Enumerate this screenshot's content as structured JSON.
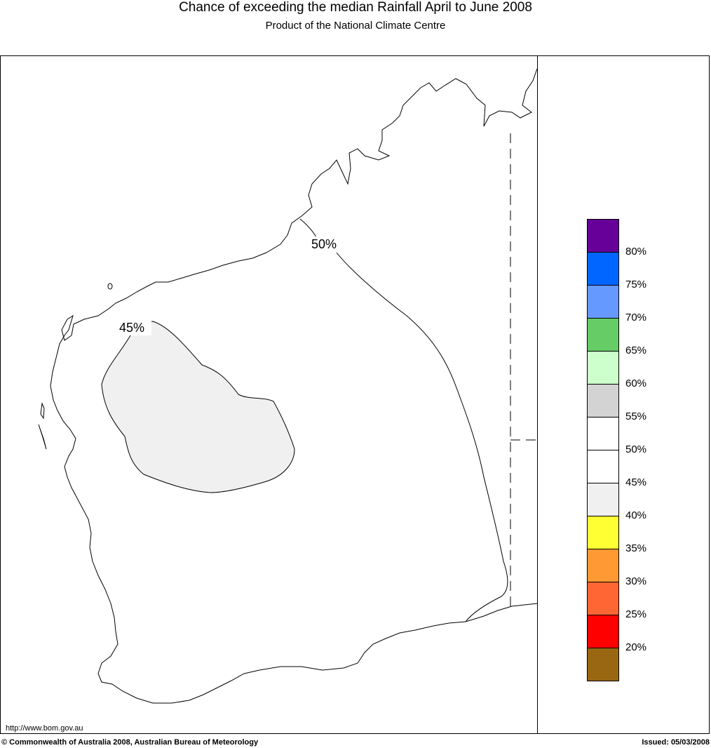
{
  "header": {
    "title": "Chance of exceeding the median Rainfall April to June 2008",
    "subtitle": "Product of the National Climate Centre"
  },
  "map": {
    "contours": [
      {
        "label": "50%"
      },
      {
        "label": "45%"
      }
    ],
    "colors": {
      "region_45": "#f0f0f0",
      "coastline": "#000000",
      "background": "#ffffff"
    }
  },
  "legend": {
    "swatches": [
      {
        "color": "#660099"
      },
      {
        "color": "#0066ff"
      },
      {
        "color": "#6699ff"
      },
      {
        "color": "#66cc66"
      },
      {
        "color": "#ccffcc"
      },
      {
        "color": "#d3d3d3"
      },
      {
        "color": "#ffffff"
      },
      {
        "color": "#ffffff"
      },
      {
        "color": "#f0f0f0"
      },
      {
        "color": "#ffff33"
      },
      {
        "color": "#ff9933"
      },
      {
        "color": "#ff6633"
      },
      {
        "color": "#ff0000"
      },
      {
        "color": "#996611"
      }
    ],
    "labels": [
      "80%",
      "75%",
      "70%",
      "65%",
      "60%",
      "55%",
      "50%",
      "45%",
      "40%",
      "35%",
      "30%",
      "25%",
      "20%"
    ]
  },
  "footer": {
    "url": "http://www.bom.gov.au",
    "copyright": "© Commonwealth of Australia 2008, Australian Bureau of Meteorology",
    "issued": "Issued: 05/03/2008"
  }
}
